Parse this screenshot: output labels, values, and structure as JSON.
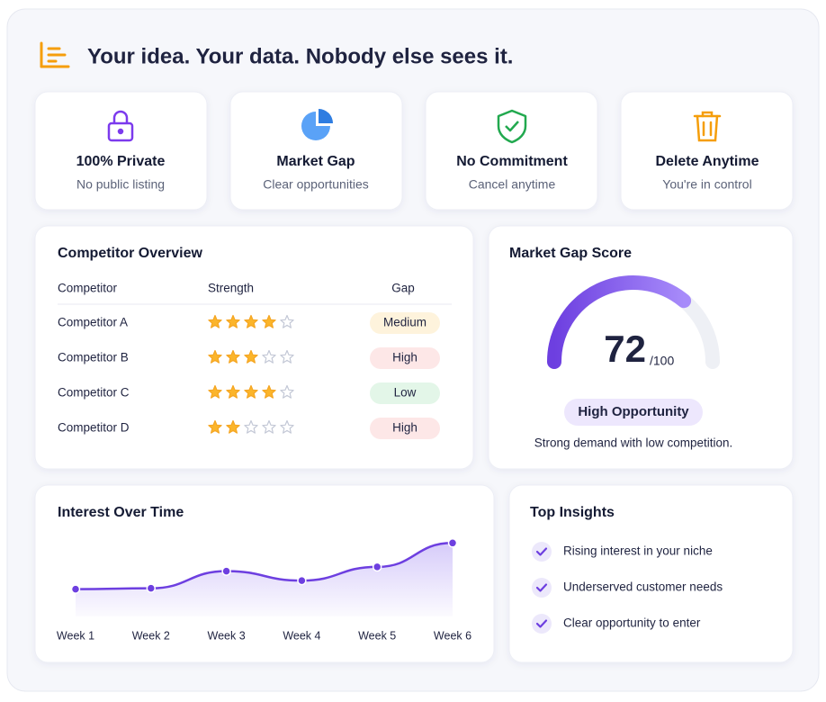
{
  "header": {
    "title": "Your idea. Your data. Nobody else sees it."
  },
  "features": [
    {
      "title": "100% Private",
      "subtitle": "No public listing"
    },
    {
      "title": "Market Gap",
      "subtitle": "Clear opportunities"
    },
    {
      "title": "No Commitment",
      "subtitle": "Cancel anytime"
    },
    {
      "title": "Delete Anytime",
      "subtitle": "You're in control"
    }
  ],
  "competitors": {
    "title": "Competitor Overview",
    "columns": [
      "Competitor",
      "Strength",
      "Gap"
    ],
    "stars_max": 5,
    "rows": [
      {
        "name": "Competitor A",
        "stars": 4,
        "gap": "Medium",
        "gap_color": "#e08a0b",
        "gap_bg": "#fef3dc"
      },
      {
        "name": "Competitor B",
        "stars": 3,
        "gap": "High",
        "gap_color": "#dc3b3b",
        "gap_bg": "#fde7e7"
      },
      {
        "name": "Competitor C",
        "stars": 4,
        "gap": "Low",
        "gap_color": "#2f9e57",
        "gap_bg": "#e3f6e8"
      },
      {
        "name": "Competitor D",
        "stars": 2,
        "gap": "High",
        "gap_color": "#dc3b3b",
        "gap_bg": "#fde7e7"
      }
    ]
  },
  "gauge": {
    "title": "Market Gap Score",
    "score": 72,
    "scale": {
      "value": 100,
      "label": "/100"
    },
    "badge": "High Opportunity",
    "caption": "Strong demand with low competition."
  },
  "chart_data": {
    "type": "line",
    "title": "Interest Over Time",
    "categories": [
      "Week 1",
      "Week 2",
      "Week 3",
      "Week 4",
      "Week 5",
      "Week 6"
    ],
    "values": [
      32,
      33,
      53,
      42,
      58,
      86
    ],
    "ylim": [
      0,
      100
    ],
    "color": "#6d3fe0"
  },
  "insights": {
    "title": "Top Insights",
    "items": [
      "Rising interest in your niche",
      "Underserved customer needs",
      "Clear opportunity to enter"
    ]
  }
}
